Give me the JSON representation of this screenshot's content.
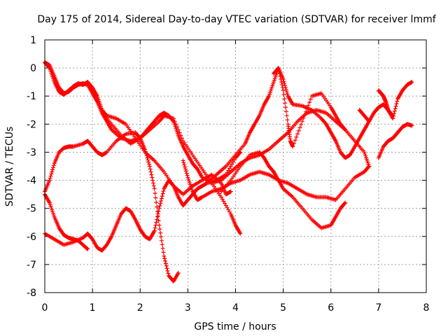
{
  "chart_data": {
    "type": "scatter",
    "title": "Day 175 of 2014, Sidereal Day-to-day VTEC variation (SDTVAR) for receiver lmmf",
    "xlabel": "GPS time / hours",
    "ylabel": "SDTVAR / TECUs",
    "xlim": [
      0,
      8
    ],
    "ylim": [
      -8,
      1
    ],
    "xticks": [
      0,
      1,
      2,
      3,
      4,
      5,
      6,
      7,
      8
    ],
    "yticks": [
      -8,
      -7,
      -6,
      -5,
      -4,
      -3,
      -2,
      -1,
      0,
      1
    ],
    "grid": true,
    "marker": "+",
    "color": "#ff0000",
    "series": [
      {
        "x": [
          0.0,
          0.1,
          0.2,
          0.3,
          0.4,
          0.5,
          0.6,
          0.7,
          0.8,
          0.9,
          1.0,
          1.1,
          1.2,
          1.3,
          1.5,
          1.7,
          1.9,
          2.1,
          2.3,
          2.5,
          2.7,
          2.9,
          3.1,
          3.3,
          3.5,
          3.7,
          3.8,
          3.9
        ],
        "y": [
          0.2,
          0.0,
          -0.5,
          -0.85,
          -0.95,
          -0.8,
          -0.65,
          -0.55,
          -0.6,
          -0.5,
          -0.7,
          -1.0,
          -1.5,
          -1.7,
          -1.8,
          -2.0,
          -2.5,
          -3.0,
          -3.3,
          -3.7,
          -4.2,
          -4.5,
          -4.2,
          -4.0,
          -3.8,
          -4.1,
          -4.5,
          -4.4
        ]
      },
      {
        "x": [
          0.0,
          0.1,
          0.2,
          0.3,
          0.4,
          0.5,
          0.6,
          0.7,
          0.8,
          0.9,
          1.0,
          1.1,
          1.2,
          1.3,
          1.4,
          1.6,
          1.8,
          2.0,
          2.2,
          2.4,
          2.5,
          2.7,
          2.9,
          3.1,
          3.3,
          3.5,
          3.7,
          3.9,
          4.0,
          4.1
        ],
        "y": [
          0.2,
          0.1,
          -0.3,
          -0.7,
          -0.9,
          -0.85,
          -0.7,
          -0.6,
          -0.55,
          -0.6,
          -0.9,
          -1.2,
          -1.6,
          -1.9,
          -2.2,
          -2.5,
          -2.6,
          -2.5,
          -2.2,
          -1.9,
          -1.7,
          -1.8,
          -2.6,
          -3.1,
          -3.6,
          -4.1,
          -4.6,
          -5.2,
          -5.6,
          -5.9
        ]
      },
      {
        "x": [
          0.0,
          0.1,
          0.2,
          0.3,
          0.4,
          0.5,
          0.6,
          0.8,
          0.9,
          1.0,
          1.1,
          1.2,
          1.3,
          1.5,
          1.7,
          1.9,
          2.0,
          2.1,
          2.2,
          2.3,
          2.4,
          2.5,
          2.6,
          2.7,
          2.8
        ],
        "y": [
          -4.4,
          -4.0,
          -3.4,
          -3.0,
          -2.85,
          -2.8,
          -2.8,
          -2.7,
          -2.6,
          -2.8,
          -3.0,
          -3.1,
          -3.0,
          -2.6,
          -2.35,
          -2.3,
          -2.5,
          -2.9,
          -3.5,
          -4.3,
          -5.6,
          -6.7,
          -7.4,
          -7.6,
          -7.3
        ]
      },
      {
        "x": [
          0.0,
          0.1,
          0.2,
          0.3,
          0.4,
          0.5,
          0.6,
          0.7,
          0.8,
          0.9
        ],
        "y": [
          -4.5,
          -4.8,
          -5.3,
          -5.7,
          -5.95,
          -6.05,
          -6.1,
          -6.15,
          -6.3,
          -6.45
        ]
      },
      {
        "x": [
          0.0,
          0.2,
          0.4,
          0.6,
          0.8,
          0.9,
          1.0,
          1.1,
          1.2,
          1.3,
          1.4,
          1.5,
          1.6,
          1.7,
          1.8,
          1.9,
          2.0,
          2.1,
          2.2,
          2.3,
          2.4,
          2.5,
          2.6,
          2.7,
          2.8,
          2.9,
          3.0,
          3.1,
          3.2,
          3.3,
          3.4,
          3.6,
          3.8,
          4.0,
          4.1
        ],
        "y": [
          -5.9,
          -6.1,
          -6.3,
          -6.2,
          -6.05,
          -5.9,
          -6.1,
          -6.4,
          -6.5,
          -6.3,
          -6.0,
          -5.6,
          -5.2,
          -5.0,
          -5.1,
          -5.4,
          -5.75,
          -6.0,
          -6.1,
          -5.8,
          -5.0,
          -4.3,
          -4.0,
          -4.2,
          -4.6,
          -4.9,
          -4.7,
          -4.5,
          -4.3,
          -4.2,
          -4.1,
          -4.0,
          -3.8,
          -3.2,
          -3.0
        ]
      },
      {
        "x": [
          1.2,
          1.4,
          1.6,
          1.8,
          2.0,
          2.1,
          2.2,
          2.3,
          2.4,
          2.5,
          2.6,
          2.7,
          2.8,
          2.9,
          3.0,
          3.1,
          3.2,
          3.3,
          3.5,
          3.7,
          3.9,
          4.1,
          4.3,
          4.5,
          4.7,
          4.9,
          5.1,
          5.3,
          5.5,
          5.7,
          5.9,
          6.1,
          6.3,
          6.5,
          6.7,
          6.8
        ],
        "y": [
          -1.6,
          -2.0,
          -2.4,
          -2.7,
          -2.5,
          -2.3,
          -2.1,
          -1.9,
          -1.7,
          -1.6,
          -1.7,
          -1.9,
          -2.4,
          -2.8,
          -3.1,
          -3.4,
          -3.6,
          -3.9,
          -4.1,
          -4.0,
          -3.7,
          -3.4,
          -3.2,
          -3.1,
          -2.9,
          -2.6,
          -2.3,
          -1.9,
          -1.6,
          -1.5,
          -1.6,
          -1.9,
          -2.2,
          -2.6,
          -3.0,
          -3.5
        ]
      },
      {
        "x": [
          2.9,
          3.0,
          3.1,
          3.2,
          3.3,
          3.5,
          3.7,
          3.9,
          4.1,
          4.3,
          4.5,
          4.7,
          4.9,
          5.1,
          5.3,
          5.5,
          5.7,
          5.9,
          6.1,
          6.3,
          6.5,
          6.7,
          6.8
        ],
        "y": [
          -3.3,
          -3.9,
          -4.4,
          -4.7,
          -4.6,
          -4.4,
          -4.3,
          -4.1,
          -4.0,
          -3.8,
          -3.7,
          -3.8,
          -4.0,
          -4.1,
          -4.3,
          -4.5,
          -4.6,
          -4.6,
          -4.7,
          -4.3,
          -3.9,
          -3.7,
          -3.5
        ]
      },
      {
        "x": [
          3.7,
          3.9,
          4.1,
          4.3,
          4.5,
          4.6,
          4.7,
          4.8,
          4.9,
          5.0,
          5.2,
          5.4,
          5.6,
          5.8,
          6.0,
          6.1,
          6.2,
          6.3
        ],
        "y": [
          -4.4,
          -4.0,
          -3.5,
          -3.1,
          -3.0,
          -3.2,
          -3.5,
          -3.7,
          -4.0,
          -4.3,
          -4.6,
          -5.0,
          -5.4,
          -5.7,
          -5.6,
          -5.3,
          -5.0,
          -4.8
        ]
      },
      {
        "x": [
          3.4,
          3.6,
          3.8,
          4.0,
          4.2,
          4.3,
          4.4,
          4.5,
          4.6,
          4.7,
          4.8,
          4.9,
          5.0,
          5.1,
          5.2,
          5.4,
          5.6,
          5.8,
          5.9,
          6.0,
          6.1,
          6.2,
          6.3,
          6.4,
          6.5,
          6.6,
          6.7,
          6.8
        ],
        "y": [
          -4.1,
          -3.8,
          -3.5,
          -3.1,
          -2.7,
          -2.3,
          -2.0,
          -1.7,
          -1.3,
          -1.0,
          -0.5,
          0.0,
          -0.4,
          -1.0,
          -1.3,
          -1.35,
          -1.5,
          -1.8,
          -2.0,
          -2.3,
          -2.6,
          -3.0,
          -3.2,
          -3.1,
          -2.8,
          -2.5,
          -2.2,
          -1.9
        ]
      },
      {
        "x": [
          4.8,
          4.9,
          5.0,
          5.1,
          5.15,
          5.2,
          5.4,
          5.6,
          5.8,
          6.0,
          6.1,
          6.2,
          6.3
        ],
        "y": [
          -0.2,
          0.0,
          -0.8,
          -2.0,
          -2.6,
          -2.8,
          -1.9,
          -1.0,
          -0.9,
          -1.4,
          -1.7,
          -2.0,
          -2.2
        ]
      },
      {
        "x": [
          6.6,
          6.7,
          6.8,
          6.9,
          7.0,
          7.1,
          7.2,
          7.3,
          7.4,
          7.5,
          7.6,
          7.7
        ],
        "y": [
          -1.5,
          -1.7,
          -1.9,
          -1.6,
          -1.4,
          -1.3,
          -1.5,
          -1.8,
          -1.1,
          -0.8,
          -0.6,
          -0.5
        ]
      },
      {
        "x": [
          7.0,
          7.1,
          7.2,
          7.3,
          7.4,
          7.5,
          7.6,
          7.7
        ],
        "y": [
          -3.2,
          -2.8,
          -2.6,
          -2.5,
          -2.3,
          -2.1,
          -2.0,
          -2.05
        ]
      },
      {
        "x": [
          7.0,
          7.05,
          7.1,
          7.15,
          7.2,
          7.3
        ],
        "y": [
          -0.8,
          -0.9,
          -1.0,
          -1.2,
          -1.5,
          -1.7
        ]
      }
    ]
  }
}
